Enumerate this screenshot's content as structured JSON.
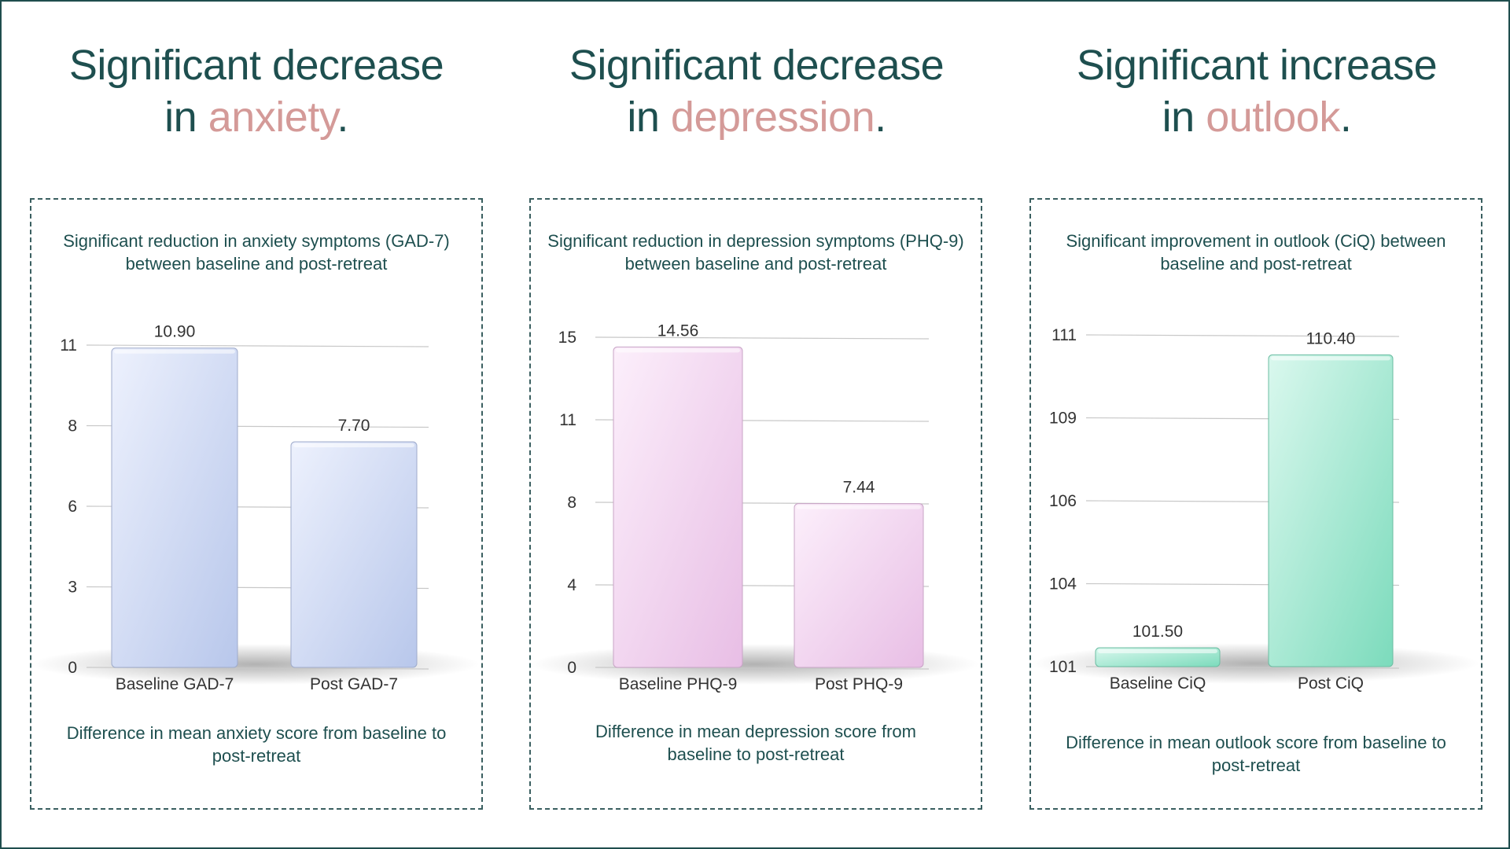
{
  "colors": {
    "heading": "#1e4f4f",
    "accent": "#d49a98",
    "anxiety_bar": "#c2d1f7",
    "depression_bar": "#f4c8f1",
    "outlook_bar": "#82e6c6"
  },
  "headings": [
    {
      "prefix": "Significant decrease",
      "line2_prefix": "in ",
      "accent": "anxiety",
      "suffix": "."
    },
    {
      "prefix": "Significant decrease",
      "line2_prefix": "in ",
      "accent": "depression",
      "suffix": "."
    },
    {
      "prefix": "Significant increase",
      "line2_prefix": "in ",
      "accent": "outlook",
      "suffix": "."
    }
  ],
  "captions": [
    "Difference in mean anxiety score from baseline to post-retreat",
    "Difference in mean depression score from baseline to post-retreat",
    "Difference in mean outlook score from baseline to post-retreat"
  ],
  "chart_data": [
    {
      "type": "bar",
      "title": "Significant reduction in anxiety symptoms (GAD-7) between baseline and post-retreat",
      "categories": [
        "Baseline GAD-7",
        "Post GAD-7"
      ],
      "values": [
        10.9,
        7.7
      ],
      "value_labels": [
        "10.90",
        "7.70"
      ],
      "yticks": [
        "0",
        "3",
        "6",
        "8",
        "11"
      ],
      "ylim": [
        0,
        11
      ],
      "grid": true,
      "color": "#c2d1f7"
    },
    {
      "type": "bar",
      "title": "Significant reduction in depression symptoms (PHQ-9) between baseline and post-retreat",
      "categories": [
        "Baseline PHQ-9",
        "Post PHQ-9"
      ],
      "values": [
        14.56,
        7.44
      ],
      "value_labels": [
        "14.56",
        "7.44"
      ],
      "yticks": [
        "0",
        "4",
        "8",
        "11",
        "15"
      ],
      "ylim": [
        0,
        15
      ],
      "grid": true,
      "color": "#f4c8f1"
    },
    {
      "type": "bar",
      "title": "Significant improvement in outlook (CiQ) between baseline and post-retreat",
      "categories": [
        "Baseline CiQ",
        "Post CiQ"
      ],
      "values": [
        101.5,
        110.4
      ],
      "value_labels": [
        "101.50",
        "110.40"
      ],
      "yticks": [
        "101",
        "104",
        "106",
        "109",
        "111"
      ],
      "ylim": [
        101,
        111
      ],
      "grid": true,
      "color": "#82e6c6"
    }
  ]
}
